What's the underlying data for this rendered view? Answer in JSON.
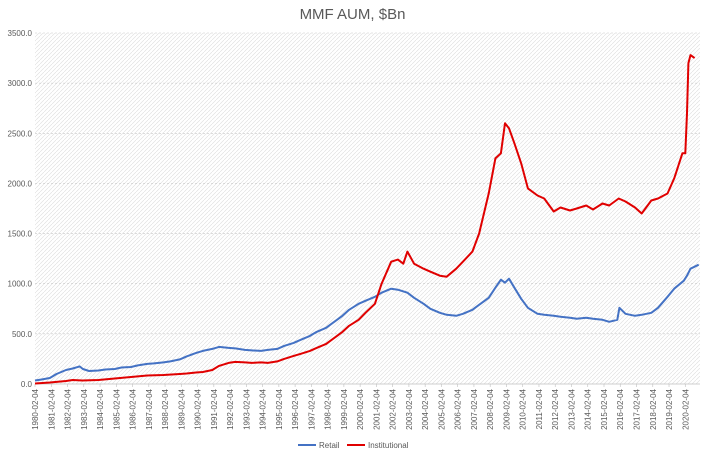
{
  "chart_data": {
    "type": "line",
    "title": "MMF AUM, $Bn",
    "xlabel": "",
    "ylabel": "",
    "ylim": [
      0,
      3500
    ],
    "yticks": [
      "0.0",
      "500.0",
      "1000.0",
      "1500.0",
      "2000.0",
      "2500.0",
      "3000.0",
      "3500.0"
    ],
    "ytick_values": [
      0,
      500,
      1000,
      1500,
      2000,
      2500,
      3000,
      3500
    ],
    "xlim": [
      "1980-02-04",
      "2020-12-31"
    ],
    "xticks": [
      "1980-02-04",
      "1981-02-04",
      "1982-02-04",
      "1983-02-04",
      "1984-02-04",
      "1985-02-04",
      "1986-02-04",
      "1987-02-04",
      "1988-02-04",
      "1989-02-04",
      "1990-02-04",
      "1991-02-04",
      "1992-02-04",
      "1993-02-04",
      "1994-02-04",
      "1995-02-04",
      "1996-02-04",
      "1997-02-04",
      "1998-02-04",
      "1999-02-04",
      "2000-02-04",
      "2001-02-04",
      "2002-02-04",
      "2003-02-04",
      "2004-02-04",
      "2005-02-04",
      "2006-02-04",
      "2007-02-04",
      "2008-02-04",
      "2009-02-04",
      "2010-02-04",
      "2011-02-04",
      "2012-02-04",
      "2013-02-04",
      "2014-02-04",
      "2015-02-04",
      "2016-02-04",
      "2017-02-04",
      "2018-02-04",
      "2019-02-04",
      "2020-02-04"
    ],
    "grid": "horizontal-dashed",
    "legend_position": "bottom-center",
    "series": [
      {
        "name": "Retail",
        "color": "#4472C4",
        "points": [
          [
            "1980-02-04",
            35
          ],
          [
            "1980-07-01",
            45
          ],
          [
            "1981-01-01",
            60
          ],
          [
            "1981-06-01",
            100
          ],
          [
            "1982-01-01",
            140
          ],
          [
            "1982-06-01",
            155
          ],
          [
            "1982-11-01",
            175
          ],
          [
            "1983-01-15",
            150
          ],
          [
            "1983-06-01",
            130
          ],
          [
            "1984-01-01",
            135
          ],
          [
            "1984-06-01",
            145
          ],
          [
            "1985-01-01",
            150
          ],
          [
            "1985-06-01",
            165
          ],
          [
            "1986-01-01",
            170
          ],
          [
            "1986-06-01",
            185
          ],
          [
            "1987-01-01",
            200
          ],
          [
            "1987-06-01",
            205
          ],
          [
            "1988-01-01",
            215
          ],
          [
            "1988-06-01",
            225
          ],
          [
            "1989-01-01",
            245
          ],
          [
            "1989-06-01",
            275
          ],
          [
            "1990-01-01",
            310
          ],
          [
            "1990-06-01",
            330
          ],
          [
            "1991-01-01",
            350
          ],
          [
            "1991-06-01",
            370
          ],
          [
            "1992-01-01",
            360
          ],
          [
            "1992-06-01",
            355
          ],
          [
            "1993-01-01",
            340
          ],
          [
            "1993-06-01",
            335
          ],
          [
            "1994-01-01",
            330
          ],
          [
            "1994-06-01",
            340
          ],
          [
            "1995-01-01",
            350
          ],
          [
            "1995-06-01",
            380
          ],
          [
            "1996-01-01",
            410
          ],
          [
            "1996-06-01",
            440
          ],
          [
            "1997-01-01",
            480
          ],
          [
            "1997-06-01",
            520
          ],
          [
            "1998-01-01",
            560
          ],
          [
            "1998-06-01",
            610
          ],
          [
            "1999-01-01",
            680
          ],
          [
            "1999-06-01",
            740
          ],
          [
            "2000-01-01",
            800
          ],
          [
            "2000-06-01",
            830
          ],
          [
            "2001-01-01",
            870
          ],
          [
            "2001-06-01",
            910
          ],
          [
            "2002-01-01",
            950
          ],
          [
            "2002-06-01",
            940
          ],
          [
            "2003-01-01",
            910
          ],
          [
            "2003-06-01",
            860
          ],
          [
            "2004-01-01",
            800
          ],
          [
            "2004-06-01",
            750
          ],
          [
            "2005-01-01",
            710
          ],
          [
            "2005-06-01",
            690
          ],
          [
            "2006-01-01",
            680
          ],
          [
            "2006-06-01",
            700
          ],
          [
            "2007-01-01",
            740
          ],
          [
            "2007-06-01",
            790
          ],
          [
            "2008-01-01",
            860
          ],
          [
            "2008-06-01",
            960
          ],
          [
            "2008-10-01",
            1040
          ],
          [
            "2009-01-01",
            1010
          ],
          [
            "2009-04-01",
            1050
          ],
          [
            "2009-08-01,",
            960
          ],
          [
            "2010-01-01",
            850
          ],
          [
            "2010-06-01",
            760
          ],
          [
            "2011-01-01",
            700
          ],
          [
            "2011-06-01",
            690
          ],
          [
            "2012-01-01",
            680
          ],
          [
            "2012-06-01",
            670
          ],
          [
            "2013-01-01",
            660
          ],
          [
            "2013-06-01",
            650
          ],
          [
            "2014-01-01",
            660
          ],
          [
            "2014-06-01",
            650
          ],
          [
            "2015-01-01",
            640
          ],
          [
            "2015-06-01",
            620
          ],
          [
            "2015-12-01",
            640
          ],
          [
            "2016-01-15",
            760
          ],
          [
            "2016-06-01",
            700
          ],
          [
            "2017-01-01",
            680
          ],
          [
            "2017-06-01",
            690
          ],
          [
            "2018-01-01",
            710
          ],
          [
            "2018-06-01",
            760
          ],
          [
            "2019-01-01",
            870
          ],
          [
            "2019-06-01",
            950
          ],
          [
            "2020-01-01",
            1030
          ],
          [
            "2020-03-15",
            1080
          ],
          [
            "2020-06-01",
            1150
          ],
          [
            "2020-09-01",
            1170
          ],
          [
            "2020-12-01",
            1190
          ]
        ]
      },
      {
        "name": "Institutional",
        "color": "#E00000",
        "points": [
          [
            "1980-02-04",
            5
          ],
          [
            "1981-01-01",
            15
          ],
          [
            "1982-01-01",
            30
          ],
          [
            "1982-06-01",
            40
          ],
          [
            "1983-01-01",
            35
          ],
          [
            "1984-01-01",
            40
          ],
          [
            "1985-01-01",
            55
          ],
          [
            "1986-01-01",
            70
          ],
          [
            "1987-01-01",
            85
          ],
          [
            "1988-01-01",
            90
          ],
          [
            "1989-01-01",
            100
          ],
          [
            "1989-06-01",
            105
          ],
          [
            "1990-01-01",
            115
          ],
          [
            "1990-06-01",
            120
          ],
          [
            "1991-01-01",
            140
          ],
          [
            "1991-06-01",
            180
          ],
          [
            "1992-01-01",
            210
          ],
          [
            "1992-06-01",
            220
          ],
          [
            "1993-01-01",
            215
          ],
          [
            "1993-06-01",
            210
          ],
          [
            "1994-01-01",
            215
          ],
          [
            "1994-06-01",
            210
          ],
          [
            "1995-01-01",
            225
          ],
          [
            "1995-06-01",
            250
          ],
          [
            "1996-01-01",
            280
          ],
          [
            "1996-06-01",
            300
          ],
          [
            "1997-01-01",
            330
          ],
          [
            "1997-06-01",
            360
          ],
          [
            "1998-01-01",
            400
          ],
          [
            "1998-06-01",
            450
          ],
          [
            "1999-01-01",
            520
          ],
          [
            "1999-06-01",
            580
          ],
          [
            "2000-01-01",
            640
          ],
          [
            "2000-06-01",
            710
          ],
          [
            "2001-01-01",
            800
          ],
          [
            "2001-06-01",
            1000
          ],
          [
            "2002-01-01",
            1220
          ],
          [
            "2002-06-01",
            1240
          ],
          [
            "2002-10-01",
            1200
          ],
          [
            "2003-01-01",
            1320
          ],
          [
            "2003-06-01",
            1200
          ],
          [
            "2004-01-01",
            1150
          ],
          [
            "2004-06-01",
            1120
          ],
          [
            "2005-01-01",
            1080
          ],
          [
            "2005-06-01",
            1070
          ],
          [
            "2006-01-01",
            1150
          ],
          [
            "2006-06-01",
            1220
          ],
          [
            "2007-01-01",
            1320
          ],
          [
            "2007-06-01",
            1500
          ],
          [
            "2008-01-01",
            1900
          ],
          [
            "2008-06-01",
            2250
          ],
          [
            "2008-10-01",
            2300
          ],
          [
            "2009-01-01",
            2600
          ],
          [
            "2009-04-01",
            2550
          ],
          [
            "2009-08-01",
            2400
          ],
          [
            "2010-01-01",
            2200
          ],
          [
            "2010-06-01",
            1950
          ],
          [
            "2011-01-01",
            1880
          ],
          [
            "2011-06-01",
            1850
          ],
          [
            "2012-01-01",
            1720
          ],
          [
            "2012-06-01",
            1760
          ],
          [
            "2013-01-01",
            1730
          ],
          [
            "2013-06-01",
            1750
          ],
          [
            "2014-01-01",
            1780
          ],
          [
            "2014-06-01",
            1740
          ],
          [
            "2015-01-01",
            1800
          ],
          [
            "2015-06-01",
            1780
          ],
          [
            "2016-01-01",
            1850
          ],
          [
            "2016-06-01",
            1820
          ],
          [
            "2017-01-01",
            1760
          ],
          [
            "2017-06-01",
            1700
          ],
          [
            "2018-01-01",
            1830
          ],
          [
            "2018-06-01",
            1850
          ],
          [
            "2019-01-01",
            1900
          ],
          [
            "2019-06-01",
            2050
          ],
          [
            "2019-12-01",
            2300
          ],
          [
            "2020-02-04",
            2300
          ],
          [
            "2020-03-15",
            2700
          ],
          [
            "2020-04-15",
            3200
          ],
          [
            "2020-06-01",
            3280
          ],
          [
            "2020-09-01",
            3250
          ]
        ]
      }
    ]
  }
}
